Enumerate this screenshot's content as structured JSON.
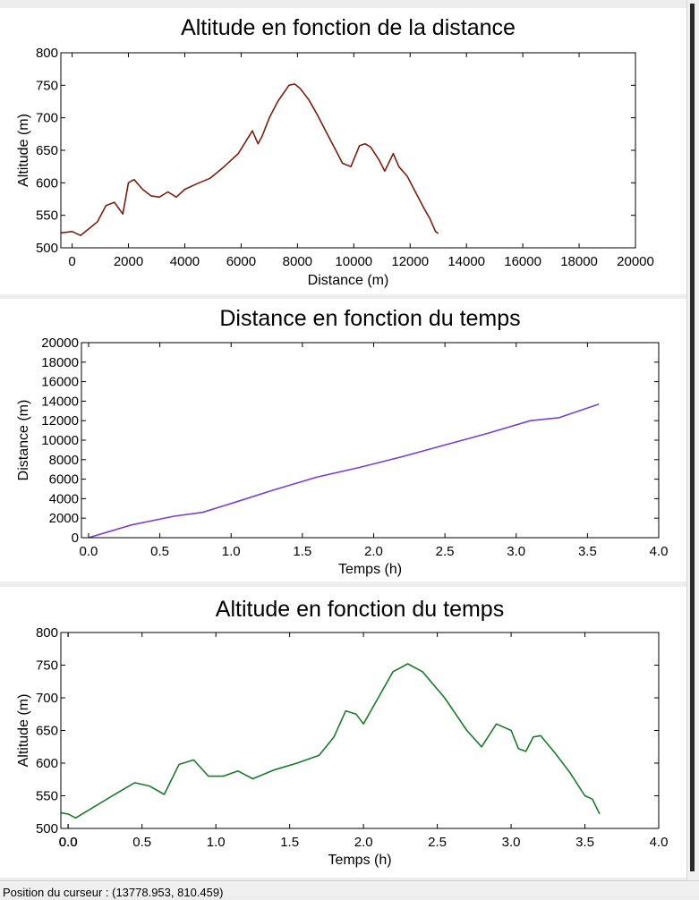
{
  "status_bar": {
    "cursor_label": "Position du curseur : (13778.953, 810.459)"
  },
  "chart_data": [
    {
      "type": "line",
      "title": "Altitude en fonction de la distance",
      "xlabel": "Distance (m)",
      "ylabel": "Altitude (m)",
      "xlim": [
        -400,
        20000
      ],
      "ylim": [
        500,
        800
      ],
      "xticks": [
        "0",
        "2000",
        "4000",
        "6000",
        "8000",
        "10000",
        "12000",
        "14000",
        "16000",
        "18000",
        "20000"
      ],
      "yticks": [
        "500",
        "550",
        "600",
        "650",
        "700",
        "750",
        "800"
      ],
      "color": "#7a1f10",
      "series": [
        {
          "x": [
            -400,
            0,
            300,
            900,
            1200,
            1500,
            1800,
            2000,
            2200,
            2500,
            2800,
            3100,
            3400,
            3700,
            4000,
            4400,
            4900,
            5400,
            5900,
            6400,
            6600,
            6750,
            7000,
            7300,
            7700,
            7900,
            8100,
            8400,
            8700,
            9000,
            9300,
            9600,
            9900,
            10200,
            10400,
            10600,
            10900,
            11100,
            11400,
            11600,
            11900,
            12200,
            12500,
            12700,
            12900,
            13000
          ],
          "y": [
            523,
            525,
            519,
            540,
            565,
            570,
            552,
            600,
            605,
            590,
            580,
            578,
            586,
            578,
            590,
            598,
            607,
            625,
            645,
            680,
            660,
            672,
            700,
            725,
            750,
            752,
            745,
            728,
            705,
            680,
            655,
            630,
            625,
            657,
            660,
            655,
            635,
            618,
            645,
            625,
            610,
            585,
            560,
            545,
            525,
            522
          ]
        }
      ]
    },
    {
      "type": "line",
      "title": "Distance en fonction du temps",
      "xlabel": "Temps (h)",
      "ylabel": "Distance (m)",
      "xlim": [
        -0.05,
        4.0
      ],
      "ylim": [
        0,
        20000
      ],
      "xticks": [
        "0.0",
        "0.5",
        "1.0",
        "1.5",
        "2.0",
        "2.5",
        "3.0",
        "3.5",
        "4.0"
      ],
      "yticks": [
        "0",
        "2000",
        "4000",
        "6000",
        "8000",
        "10000",
        "12000",
        "14000",
        "16000",
        "18000",
        "20000"
      ],
      "color": "#7a3fd0",
      "series": [
        {
          "x": [
            0.0,
            0.3,
            0.6,
            0.8,
            1.0,
            1.3,
            1.6,
            1.9,
            2.2,
            2.5,
            2.8,
            3.1,
            3.3,
            3.58
          ],
          "y": [
            0,
            1300,
            2200,
            2600,
            3500,
            4900,
            6200,
            7200,
            8300,
            9500,
            10700,
            12000,
            12300,
            13700
          ]
        }
      ]
    },
    {
      "type": "line",
      "title": "Altitude en fonction du temps",
      "xlabel": "Temps (h)",
      "ylabel": "Altitude (m)",
      "xlim": [
        -0.05,
        4.0
      ],
      "ylim": [
        500,
        800
      ],
      "xticks": [
        "0.0",
        "0.0",
        "0.5",
        "1.0",
        "1.5",
        "2.0",
        "2.5",
        "3.0",
        "3.5",
        "4.0"
      ],
      "yticks": [
        "500",
        "550",
        "600",
        "650",
        "700",
        "750",
        "800"
      ],
      "color": "#1a7a2a",
      "series": [
        {
          "x": [
            -0.05,
            0.0,
            0.05,
            0.3,
            0.45,
            0.55,
            0.65,
            0.75,
            0.85,
            0.95,
            1.05,
            1.15,
            1.25,
            1.4,
            1.55,
            1.7,
            1.8,
            1.88,
            1.95,
            2.0,
            2.1,
            2.2,
            2.3,
            2.4,
            2.55,
            2.7,
            2.8,
            2.9,
            3.0,
            3.05,
            3.1,
            3.15,
            3.2,
            3.3,
            3.4,
            3.5,
            3.55,
            3.6
          ],
          "y": [
            524,
            522,
            516,
            550,
            570,
            565,
            552,
            598,
            605,
            580,
            580,
            588,
            576,
            590,
            600,
            612,
            640,
            680,
            675,
            660,
            700,
            740,
            752,
            740,
            700,
            650,
            625,
            660,
            650,
            622,
            618,
            640,
            642,
            615,
            585,
            550,
            545,
            522
          ]
        }
      ]
    }
  ]
}
